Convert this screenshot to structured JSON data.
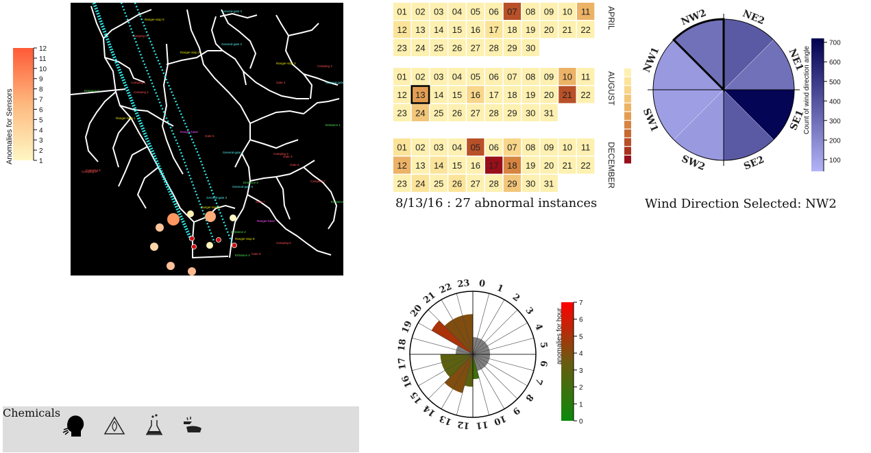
{
  "sensor_legend": {
    "title": "Anomalies for Sensors",
    "ticks": [
      "1",
      "2",
      "3",
      "4",
      "5",
      "6",
      "7",
      "8",
      "9",
      "10",
      "11",
      "12"
    ],
    "color_low": "#fff7c4",
    "color_high": "#ff5a36"
  },
  "map": {
    "labels": [
      "Ranger-stop 0",
      "General-gate 0",
      "Camping 0",
      "Ranger-stop 2",
      "General-gate 2",
      "Ranger-stop 3",
      "Camping 4",
      "Entrance 0",
      "Camping 1",
      "Camping 2",
      "Gate 4",
      "Ranger-stop 1",
      "General-gate 4",
      "Ranger-base",
      "Gate 5",
      "General-gate 5",
      "Entrance 1",
      "Camping 3",
      "Camping 5",
      "Gate 6",
      "General-gate 3",
      "Ranger-stop 4",
      "Gate 7",
      "General-gate 6",
      "Entrance 2",
      "Ranger-stop 6",
      "Camping 6",
      "Gate 8",
      "Camping 7",
      "Entrance 3",
      "Entrance 4",
      "Camping 8",
      "Ranger-base",
      "Gate 3",
      "Entrance 4"
    ],
    "background": "#000000",
    "road_color": "#ffffff",
    "track_color": "#2ee6e6"
  },
  "calendar": {
    "months": [
      {
        "name": "APRIL",
        "days": [
          "01",
          "02",
          "03",
          "04",
          "05",
          "06",
          "07",
          "08",
          "09",
          "10",
          "11",
          "12",
          "13",
          "14",
          "15",
          "16",
          "17",
          "18",
          "19",
          "20",
          "21",
          "22",
          "23",
          "24",
          "25",
          "26",
          "27",
          "28",
          "29",
          "30"
        ],
        "levels": [
          1,
          1,
          1,
          1,
          1,
          1,
          9,
          1,
          1,
          1,
          5,
          2,
          1,
          1,
          1,
          1,
          2,
          1,
          1,
          1,
          1,
          1,
          1,
          1,
          1,
          1,
          1,
          1,
          1,
          1
        ]
      },
      {
        "name": "AUGUST",
        "days": [
          "01",
          "02",
          "03",
          "04",
          "05",
          "06",
          "07",
          "08",
          "09",
          "10",
          "11",
          "12",
          "13",
          "14",
          "15",
          "16",
          "17",
          "18",
          "19",
          "20",
          "21",
          "22",
          "23",
          "24",
          "25",
          "26",
          "27",
          "28",
          "29",
          "30",
          "31"
        ],
        "levels": [
          1,
          1,
          1,
          1,
          1,
          1,
          1,
          1,
          1,
          5,
          1,
          1,
          6,
          1,
          1,
          3,
          1,
          1,
          1,
          1,
          9,
          1,
          1,
          4,
          1,
          1,
          1,
          1,
          1,
          1,
          1
        ]
      },
      {
        "name": "DECEMBER",
        "days": [
          "01",
          "02",
          "03",
          "04",
          "05",
          "06",
          "07",
          "08",
          "09",
          "10",
          "11",
          "12",
          "13",
          "14",
          "15",
          "16",
          "17",
          "18",
          "19",
          "20",
          "21",
          "22",
          "23",
          "24",
          "25",
          "26",
          "27",
          "28",
          "29",
          "30",
          "31"
        ],
        "levels": [
          2,
          1,
          1,
          1,
          9,
          1,
          3,
          1,
          1,
          1,
          1,
          5,
          1,
          2,
          1,
          1,
          12,
          7,
          1,
          1,
          1,
          1,
          1,
          2,
          1,
          2,
          1,
          1,
          4,
          1,
          1
        ]
      }
    ],
    "selected": {
      "month": 1,
      "day_index": 12
    },
    "caption": "8/13/16 : 27 abnormal instances",
    "scale_colors": [
      "#fdf0b0",
      "#fbe49a",
      "#f8d68a",
      "#f2c67a",
      "#ecb266",
      "#e39d52",
      "#d6843f",
      "#c76a32",
      "#b85028",
      "#a8341e",
      "#980f1a"
    ]
  },
  "chart_data": [
    {
      "type": "pie",
      "title": "",
      "categories": [
        "NE2",
        "NE1",
        "SE1",
        "SE2",
        "SW2",
        "SW1",
        "NW1",
        "NW2"
      ],
      "values": [
        380,
        290,
        700,
        380,
        140,
        120,
        140,
        290
      ],
      "selected": "NW2",
      "colorbar": {
        "label": "Count of wind direction angle",
        "ticks": [
          "100",
          "200",
          "300",
          "400",
          "500",
          "600",
          "700"
        ],
        "range": [
          40,
          720
        ],
        "color_low": "#b3b3f8",
        "color_high": "#000050"
      }
    },
    {
      "type": "bar",
      "title": "",
      "categories": [
        "0",
        "1",
        "2",
        "3",
        "4",
        "5",
        "6",
        "7",
        "8",
        "9",
        "10",
        "11",
        "12",
        "13",
        "14",
        "15",
        "16",
        "17",
        "18",
        "19",
        "20",
        "21",
        "22",
        "23"
      ],
      "values": [
        1,
        1,
        1,
        1,
        1,
        1,
        1,
        1,
        1,
        1,
        1,
        2,
        3,
        4,
        4,
        3,
        3,
        3,
        1,
        1,
        5,
        4,
        4,
        4
      ],
      "max_value": 7,
      "colorbar": {
        "label": "anomalies for hour",
        "ticks": [
          "0",
          "1",
          "2",
          "3",
          "4",
          "5",
          "6",
          "7"
        ],
        "range": [
          0,
          7
        ],
        "color_low": "#0a8a0a",
        "color_mid": "#6b5a10",
        "color_high": "#ff0000"
      }
    }
  ],
  "wind": {
    "caption": "Wind Direction Selected: NW2"
  },
  "chemicals": {
    "title": "Chemicals",
    "icons": [
      "inhalation-icon",
      "flammable-hazard-icon",
      "chemical-flask-icon",
      "corrosive-hand-icon"
    ]
  }
}
